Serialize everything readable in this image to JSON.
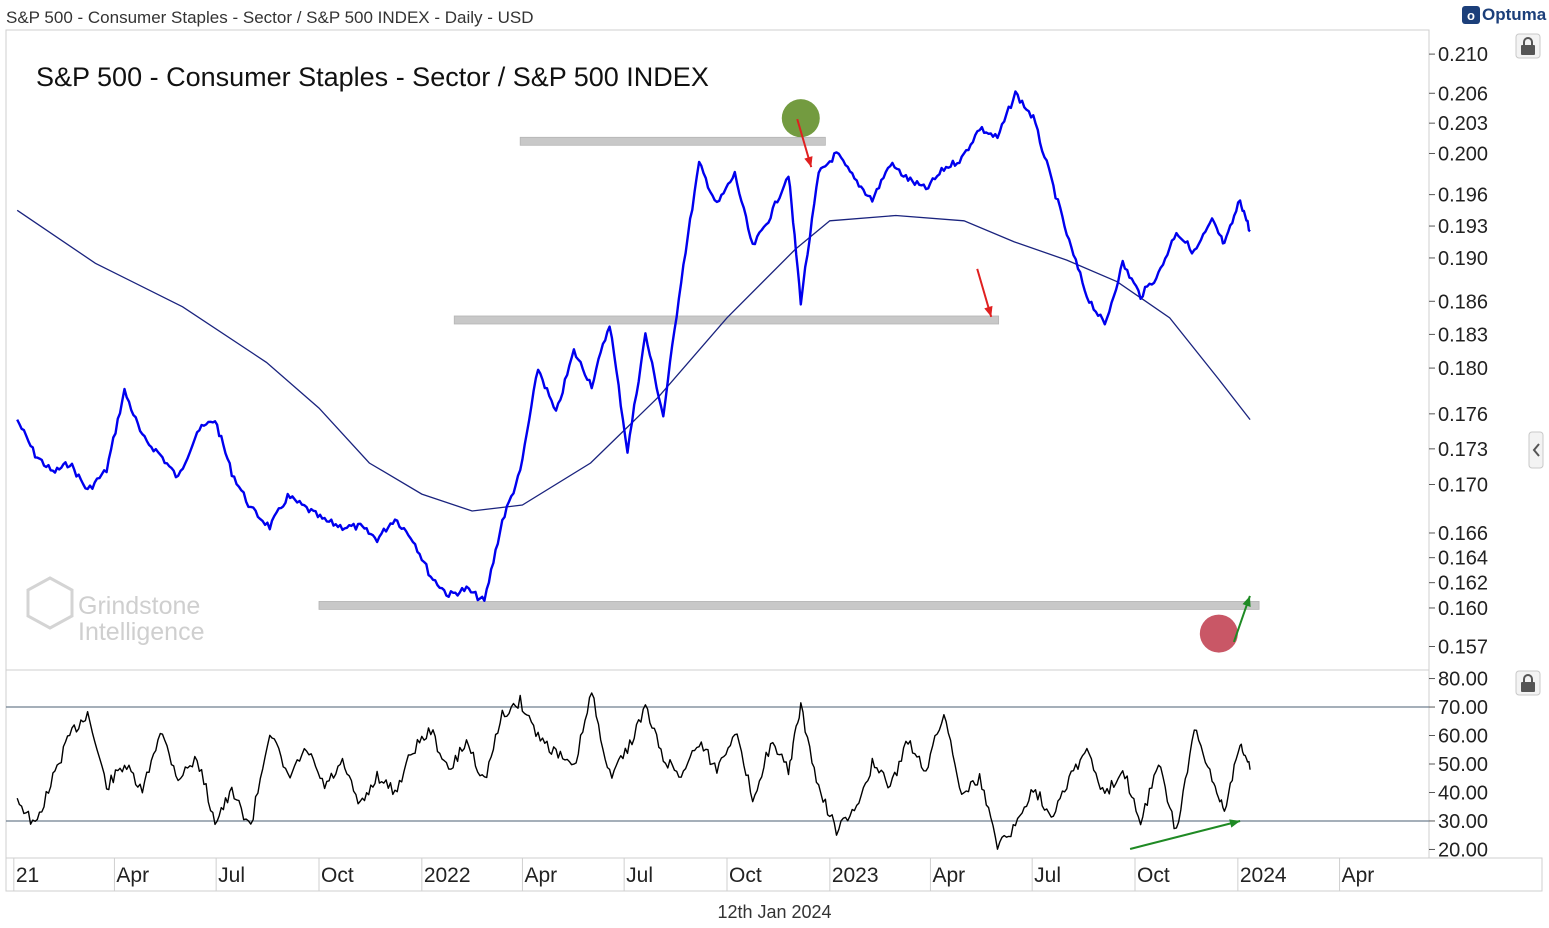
{
  "header": {
    "window_title": "S&P 500 - Consumer Staples - Sector / S&P 500 INDEX - Daily - USD",
    "brand": "Optuma",
    "brand_mark": "o"
  },
  "footer": {
    "date": "12th Jan 2024"
  },
  "watermark": {
    "line1": "Grindstone",
    "line2": "Intelligence"
  },
  "colors": {
    "price": "#0000ee",
    "ma": "#1a237e",
    "rsi": "#000000",
    "support": "#c8c8c8",
    "green_marker": "#5a8a1f",
    "red_marker": "#c0394b",
    "down_arrow": "#e02020",
    "up_arrow": "#1f8a24"
  },
  "icons": {
    "lock": "lock-icon",
    "collapse": "chevron-left-icon"
  },
  "chart_data": [
    {
      "type": "line",
      "title": "S&P 500 - Consumer Staples - Sector / S&P 500 INDEX",
      "y_scale": "log",
      "yticks": [
        "0.210",
        "0.206",
        "0.203",
        "0.200",
        "0.196",
        "0.193",
        "0.190",
        "0.186",
        "0.183",
        "0.180",
        "0.176",
        "0.173",
        "0.170",
        "0.166",
        "0.164",
        "0.162",
        "0.160",
        "0.157"
      ],
      "xticks": [
        "21",
        "Apr",
        "Jul",
        "Oct",
        "2022",
        "Apr",
        "Jul",
        "Oct",
        "2023",
        "Apr",
        "Jul",
        "Oct",
        "2024",
        "Apr"
      ],
      "series": [
        {
          "role": "ratio",
          "x": [
            "2021-01-04",
            "2021-01-20",
            "2021-02-05",
            "2021-02-20",
            "2021-03-08",
            "2021-03-25",
            "2021-04-10",
            "2021-04-26",
            "2021-05-12",
            "2021-05-28",
            "2021-06-14",
            "2021-06-30",
            "2021-07-15",
            "2021-08-01",
            "2021-08-18",
            "2021-09-03",
            "2021-09-20",
            "2021-10-06",
            "2021-10-22",
            "2021-11-07",
            "2021-11-22",
            "2021-12-08",
            "2021-12-24",
            "2022-01-09",
            "2022-01-25",
            "2022-02-10",
            "2022-02-26",
            "2022-03-14",
            "2022-03-30",
            "2022-04-15",
            "2022-05-01",
            "2022-05-17",
            "2022-06-02",
            "2022-06-18",
            "2022-07-04",
            "2022-07-20",
            "2022-08-05",
            "2022-08-21",
            "2022-09-06",
            "2022-09-22",
            "2022-10-08",
            "2022-10-24",
            "2022-11-09",
            "2022-11-25",
            "2022-12-06",
            "2022-12-22",
            "2023-01-07",
            "2023-01-23",
            "2023-02-08",
            "2023-02-24",
            "2023-03-12",
            "2023-03-28",
            "2023-04-13",
            "2023-04-29",
            "2023-05-15",
            "2023-05-31",
            "2023-06-16",
            "2023-07-02",
            "2023-07-18",
            "2023-08-03",
            "2023-08-19",
            "2023-09-04",
            "2023-09-20",
            "2023-10-06",
            "2023-10-22",
            "2023-11-07",
            "2023-11-23",
            "2023-12-09",
            "2023-12-20",
            "2024-01-03",
            "2024-01-12"
          ],
          "y": [
            0.1755,
            0.1725,
            0.171,
            0.1718,
            0.1695,
            0.1712,
            0.178,
            0.174,
            0.1725,
            0.1705,
            0.1745,
            0.1755,
            0.171,
            0.168,
            0.1665,
            0.169,
            0.168,
            0.167,
            0.1665,
            0.1665,
            0.1655,
            0.1672,
            0.1655,
            0.1625,
            0.161,
            0.1615,
            0.1605,
            0.167,
            0.171,
            0.18,
            0.176,
            0.1815,
            0.1785,
            0.184,
            0.1728,
            0.183,
            0.1758,
            0.188,
            0.199,
            0.195,
            0.198,
            0.191,
            0.194,
            0.198,
            0.186,
            0.198,
            0.2,
            0.1975,
            0.1955,
            0.199,
            0.1975,
            0.1965,
            0.1985,
            0.1995,
            0.2025,
            0.2015,
            0.206,
            0.2035,
            0.1975,
            0.1915,
            0.1865,
            0.1838,
            0.1895,
            0.1865,
            0.1885,
            0.1925,
            0.1905,
            0.1935,
            0.1912,
            0.1955,
            0.1925
          ]
        },
        {
          "role": "moving-average",
          "x": [
            "2021-01-04",
            "2021-03-15",
            "2021-06-01",
            "2021-08-15",
            "2021-10-01",
            "2021-11-15",
            "2022-01-01",
            "2022-02-15",
            "2022-04-01",
            "2022-06-01",
            "2022-08-01",
            "2022-10-01",
            "2022-12-01",
            "2023-01-01",
            "2023-03-01",
            "2023-05-01",
            "2023-06-15",
            "2023-08-01",
            "2023-09-15",
            "2023-11-01",
            "2023-12-15",
            "2024-01-12"
          ],
          "y": [
            0.1945,
            0.1895,
            0.1855,
            0.1805,
            0.1765,
            0.1718,
            0.1692,
            0.1678,
            0.1683,
            0.1718,
            0.1775,
            0.1845,
            0.1908,
            0.1935,
            0.194,
            0.1935,
            0.1915,
            0.1898,
            0.1878,
            0.1845,
            0.179,
            0.1755
          ]
        }
      ],
      "support_levels": [
        0.2012,
        0.1843,
        0.1602
      ],
      "annotations": [
        {
          "type": "circle",
          "color": "green",
          "x": "2022-12-06",
          "y": 0.2035
        },
        {
          "type": "arrow-down",
          "x": "2022-12-10",
          "y": 0.1975
        },
        {
          "type": "arrow-down",
          "x": "2023-05-20",
          "y": 0.1835
        },
        {
          "type": "circle",
          "color": "red",
          "x": "2023-12-15",
          "y": 0.158
        },
        {
          "type": "arrow-up",
          "x": "2024-01-10",
          "y": 0.16
        }
      ]
    },
    {
      "type": "line",
      "title": "",
      "ylim": [
        20,
        80
      ],
      "yticks": [
        "80.00",
        "70.00",
        "60.00",
        "50.00",
        "40.00",
        "30.00",
        "20.00"
      ],
      "reference_lines": [
        70,
        30
      ],
      "series": [
        {
          "role": "oscillator",
          "x": [
            "2021-01-04",
            "2021-01-20",
            "2021-02-05",
            "2021-02-20",
            "2021-03-08",
            "2021-03-25",
            "2021-04-10",
            "2021-04-26",
            "2021-05-12",
            "2021-05-28",
            "2021-06-14",
            "2021-06-30",
            "2021-07-15",
            "2021-08-01",
            "2021-08-18",
            "2021-09-03",
            "2021-09-20",
            "2021-10-06",
            "2021-10-22",
            "2021-11-07",
            "2021-11-22",
            "2021-12-08",
            "2021-12-24",
            "2022-01-09",
            "2022-01-25",
            "2022-02-10",
            "2022-02-26",
            "2022-03-14",
            "2022-03-30",
            "2022-04-15",
            "2022-05-01",
            "2022-05-17",
            "2022-06-02",
            "2022-06-18",
            "2022-07-04",
            "2022-07-20",
            "2022-08-05",
            "2022-08-21",
            "2022-09-06",
            "2022-09-22",
            "2022-10-08",
            "2022-10-24",
            "2022-11-09",
            "2022-11-25",
            "2022-12-06",
            "2022-12-22",
            "2023-01-07",
            "2023-01-23",
            "2023-02-08",
            "2023-02-24",
            "2023-03-12",
            "2023-03-28",
            "2023-04-13",
            "2023-04-29",
            "2023-05-15",
            "2023-05-31",
            "2023-06-16",
            "2023-07-02",
            "2023-07-18",
            "2023-08-03",
            "2023-08-19",
            "2023-09-04",
            "2023-09-20",
            "2023-10-06",
            "2023-10-22",
            "2023-11-07",
            "2023-11-23",
            "2023-12-09",
            "2023-12-20",
            "2024-01-03",
            "2024-01-12"
          ],
          "y": [
            38,
            28,
            45,
            60,
            68,
            42,
            50,
            40,
            62,
            45,
            52,
            30,
            40,
            28,
            62,
            45,
            55,
            42,
            50,
            35,
            46,
            40,
            55,
            62,
            47,
            58,
            44,
            67,
            72,
            60,
            54,
            48,
            75,
            46,
            55,
            70,
            52,
            46,
            58,
            48,
            62,
            38,
            57,
            48,
            70,
            41,
            27,
            33,
            50,
            42,
            58,
            48,
            68,
            40,
            45,
            22,
            28,
            42,
            32,
            45,
            55,
            38,
            49,
            30,
            50,
            26,
            62,
            44,
            34,
            58,
            48
          ]
        }
      ],
      "annotations": [
        {
          "type": "arrow-up",
          "x": "2024-01-03",
          "y": 30
        }
      ]
    }
  ]
}
